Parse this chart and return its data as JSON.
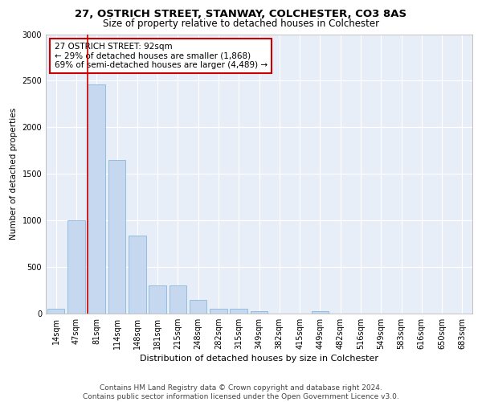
{
  "title1": "27, OSTRICH STREET, STANWAY, COLCHESTER, CO3 8AS",
  "title2": "Size of property relative to detached houses in Colchester",
  "xlabel": "Distribution of detached houses by size in Colchester",
  "ylabel": "Number of detached properties",
  "categories": [
    "14sqm",
    "47sqm",
    "81sqm",
    "114sqm",
    "148sqm",
    "181sqm",
    "215sqm",
    "248sqm",
    "282sqm",
    "315sqm",
    "349sqm",
    "382sqm",
    "415sqm",
    "449sqm",
    "482sqm",
    "516sqm",
    "549sqm",
    "583sqm",
    "616sqm",
    "650sqm",
    "683sqm"
  ],
  "values": [
    55,
    1000,
    2460,
    1650,
    840,
    300,
    300,
    150,
    50,
    50,
    30,
    0,
    0,
    30,
    0,
    0,
    0,
    0,
    0,
    0,
    0
  ],
  "bar_color": "#c5d8f0",
  "bar_edge_color": "#7bafd4",
  "vline_color": "#cc0000",
  "annotation_text": "27 OSTRICH STREET: 92sqm\n← 29% of detached houses are smaller (1,868)\n69% of semi-detached houses are larger (4,489) →",
  "annotation_box_color": "#ffffff",
  "annotation_box_edge": "#cc0000",
  "ylim": [
    0,
    3000
  ],
  "yticks": [
    0,
    500,
    1000,
    1500,
    2000,
    2500,
    3000
  ],
  "background_color": "#e8eef8",
  "footer_text": "Contains HM Land Registry data © Crown copyright and database right 2024.\nContains public sector information licensed under the Open Government Licence v3.0.",
  "title1_fontsize": 9.5,
  "title2_fontsize": 8.5,
  "xlabel_fontsize": 8,
  "ylabel_fontsize": 7.5,
  "tick_fontsize": 7,
  "annotation_fontsize": 7.5,
  "footer_fontsize": 6.5
}
